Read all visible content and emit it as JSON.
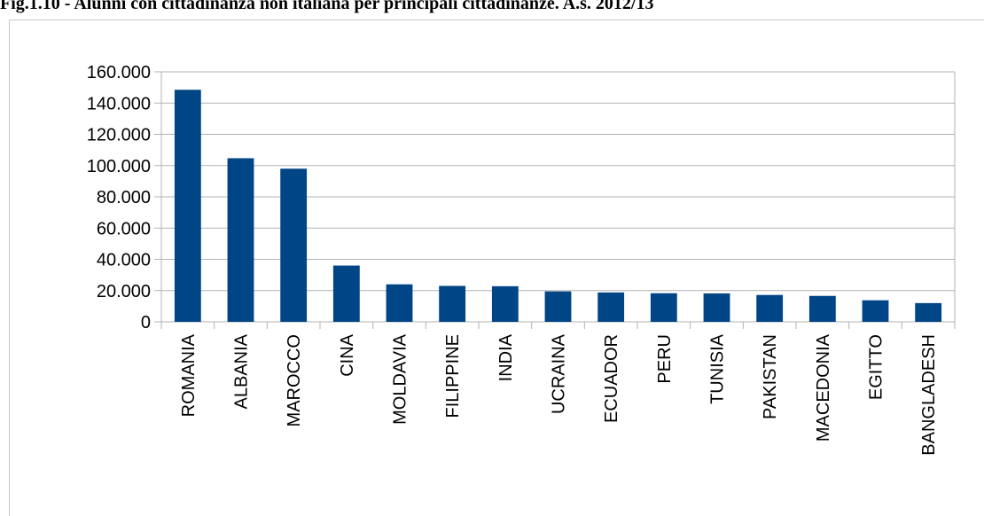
{
  "figure": {
    "title": "Fig.1.10 - Alunni con cittadinanza non italiana per principali cittadinanze. A.s. 2012/13"
  },
  "chart_data": {
    "type": "bar",
    "title": "",
    "xlabel": "",
    "ylabel": "",
    "categories": [
      "ROMANIA",
      "ALBANIA",
      "MAROCCO",
      "CINA",
      "MOLDAVIA",
      "FILIPPINE",
      "INDIA",
      "UCRAINA",
      "ECUADOR",
      "PERU",
      "TUNISIA",
      "PAKISTAN",
      "MACEDONIA",
      "EGITTO",
      "BANGLADESH"
    ],
    "values": [
      148500,
      104700,
      98000,
      36000,
      24000,
      23000,
      22800,
      19500,
      18800,
      18300,
      18200,
      17200,
      16600,
      13800,
      12000
    ],
    "ylim": [
      0,
      160000
    ],
    "yticks": [
      0,
      20000,
      40000,
      60000,
      80000,
      100000,
      120000,
      140000,
      160000
    ],
    "ytick_labels": [
      "0",
      "20.000",
      "40.000",
      "60.000",
      "80.000",
      "100.000",
      "120.000",
      "140.000",
      "160.000"
    ],
    "grid": true,
    "legend": "none",
    "colors": {
      "bar": "#004586",
      "grid": "#b3b3b3",
      "axis": "#b3b3b3"
    }
  }
}
